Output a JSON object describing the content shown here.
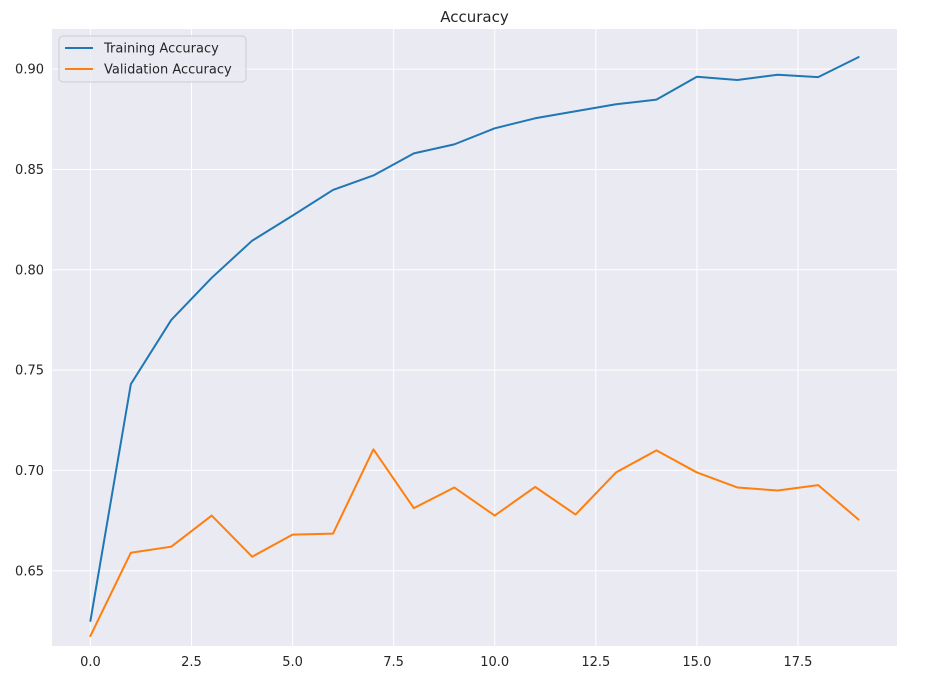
{
  "chart_data": {
    "type": "line",
    "title": "Accuracy",
    "xlabel": "",
    "ylabel": "",
    "xlim": [
      -0.95,
      19.95
    ],
    "ylim": [
      0.6125,
      0.92
    ],
    "xticks": [
      0.0,
      2.5,
      5.0,
      7.5,
      10.0,
      12.5,
      15.0,
      17.5
    ],
    "xtick_labels": [
      "0.0",
      "2.5",
      "5.0",
      "7.5",
      "10.0",
      "12.5",
      "15.0",
      "17.5"
    ],
    "yticks": [
      0.65,
      0.7,
      0.75,
      0.8,
      0.85,
      0.9
    ],
    "ytick_labels": [
      "0.65",
      "0.70",
      "0.75",
      "0.80",
      "0.85",
      "0.90"
    ],
    "grid": true,
    "legend_position": "top-left",
    "x": [
      0,
      1,
      2,
      3,
      4,
      5,
      6,
      7,
      8,
      9,
      10,
      11,
      12,
      13,
      14,
      15,
      16,
      17,
      18,
      19
    ],
    "series": [
      {
        "name": "Training Accuracy",
        "color": "#1f77b4",
        "values": [
          0.625,
          0.743,
          0.775,
          0.796,
          0.8145,
          0.827,
          0.8398,
          0.847,
          0.858,
          0.8625,
          0.8705,
          0.8755,
          0.879,
          0.8825,
          0.8848,
          0.8962,
          0.8946,
          0.8972,
          0.896,
          0.906
        ]
      },
      {
        "name": "Validation Accuracy",
        "color": "#ff7f0e",
        "values": [
          0.6175,
          0.659,
          0.662,
          0.6775,
          0.657,
          0.668,
          0.6685,
          0.7105,
          0.6812,
          0.6915,
          0.6775,
          0.6918,
          0.678,
          0.699,
          0.71,
          0.699,
          0.6915,
          0.69,
          0.6927,
          0.6755
        ]
      }
    ]
  },
  "colors": {
    "plot_background": "#eaeaf2",
    "grid": "#ffffff"
  }
}
